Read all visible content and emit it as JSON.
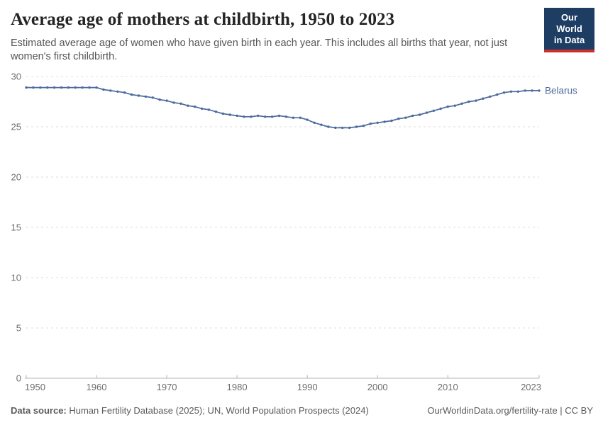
{
  "header": {
    "title": "Average age of mothers at childbirth, 1950 to 2023",
    "subtitle": "Estimated average age of women who have given birth in each year. This includes all births that year, not just women's first childbirth.",
    "logo": {
      "line1": "Our World",
      "line2": "in Data",
      "bg_color": "#1d3d63",
      "stripe_color": "#cf2e2a"
    }
  },
  "chart_data": {
    "type": "line",
    "title": "Average age of mothers at childbirth, 1950 to 2023",
    "xlabel": "",
    "ylabel": "",
    "xlim": [
      1950,
      2023
    ],
    "ylim": [
      0,
      30
    ],
    "x_ticks": [
      1950,
      1960,
      1970,
      1980,
      1990,
      2000,
      2010,
      2023
    ],
    "y_ticks": [
      0,
      5,
      10,
      15,
      20,
      25,
      30
    ],
    "grid": "dashed-horizontal",
    "grid_color": "#dcdcdc",
    "axis_color": "#b3b3b3",
    "legend_position": "end-of-line-label",
    "years": [
      1950,
      1951,
      1952,
      1953,
      1954,
      1955,
      1956,
      1957,
      1958,
      1959,
      1960,
      1961,
      1962,
      1963,
      1964,
      1965,
      1966,
      1967,
      1968,
      1969,
      1970,
      1971,
      1972,
      1973,
      1974,
      1975,
      1976,
      1977,
      1978,
      1979,
      1980,
      1981,
      1982,
      1983,
      1984,
      1985,
      1986,
      1987,
      1988,
      1989,
      1990,
      1991,
      1992,
      1993,
      1994,
      1995,
      1996,
      1997,
      1998,
      1999,
      2000,
      2001,
      2002,
      2003,
      2004,
      2005,
      2006,
      2007,
      2008,
      2009,
      2010,
      2011,
      2012,
      2013,
      2014,
      2015,
      2016,
      2017,
      2018,
      2019,
      2020,
      2021,
      2022,
      2023
    ],
    "series": [
      {
        "name": "Belarus",
        "color": "#4c6a9c",
        "values": [
          28.9,
          28.9,
          28.9,
          28.9,
          28.9,
          28.9,
          28.9,
          28.9,
          28.9,
          28.9,
          28.9,
          28.7,
          28.6,
          28.5,
          28.4,
          28.2,
          28.1,
          28.0,
          27.9,
          27.7,
          27.6,
          27.4,
          27.3,
          27.1,
          27.0,
          26.8,
          26.7,
          26.5,
          26.3,
          26.2,
          26.1,
          26.0,
          26.0,
          26.1,
          26.0,
          26.0,
          26.1,
          26.0,
          25.9,
          25.9,
          25.7,
          25.4,
          25.2,
          25.0,
          24.9,
          24.9,
          24.9,
          25.0,
          25.1,
          25.3,
          25.4,
          25.5,
          25.6,
          25.8,
          25.9,
          26.1,
          26.2,
          26.4,
          26.6,
          26.8,
          27.0,
          27.1,
          27.3,
          27.5,
          27.6,
          27.8,
          28.0,
          28.2,
          28.4,
          28.5,
          28.5,
          28.6,
          28.6,
          28.6
        ]
      }
    ]
  },
  "footer": {
    "datasource_label": "Data source:",
    "datasource_text": " Human Fertility Database (2025); UN, World Population Prospects (2024)",
    "rights": "OurWorldinData.org/fertility-rate | CC BY"
  }
}
